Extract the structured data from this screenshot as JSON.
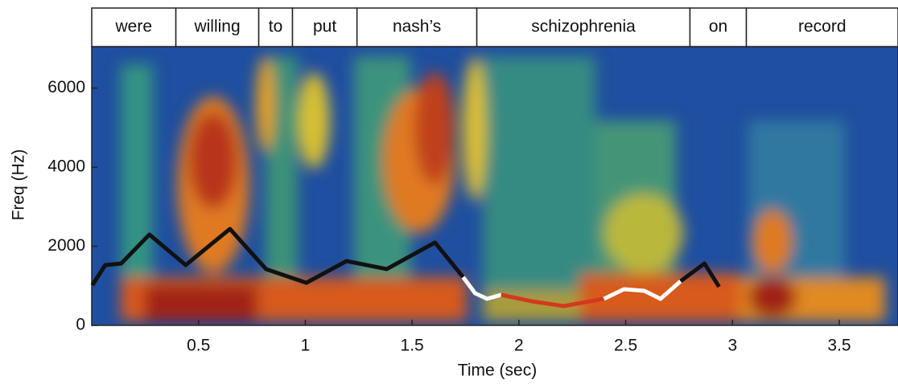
{
  "chart_data": {
    "type": "spectrogram",
    "xlabel": "Time (sec)",
    "ylabel": "Freq (Hz)",
    "xlim": [
      0,
      3.775
    ],
    "ylim": [
      0,
      7050
    ],
    "xticks": [
      0.5,
      1,
      1.5,
      2,
      2.5,
      3,
      3.5
    ],
    "yticks": [
      0,
      2000,
      4000,
      6000
    ],
    "words": [
      {
        "text": "were",
        "start": 0,
        "end": 0.394
      },
      {
        "text": "willing",
        "start": 0.394,
        "end": 0.782
      },
      {
        "text": "to",
        "start": 0.782,
        "end": 0.94
      },
      {
        "text": "put",
        "start": 0.94,
        "end": 1.242
      },
      {
        "text": "nash’s",
        "start": 1.242,
        "end": 1.803
      },
      {
        "text": "schizophrenia",
        "start": 1.803,
        "end": 2.801
      },
      {
        "text": "on",
        "start": 2.801,
        "end": 3.065
      },
      {
        "text": "record",
        "start": 3.065,
        "end": 3.775
      }
    ],
    "series": [
      {
        "color": "#111111",
        "x": [
          0.003,
          0.063,
          0.138,
          0.27,
          0.44,
          0.647,
          0.816,
          1.005,
          1.193,
          1.381,
          1.607,
          1.739
        ],
        "values": [
          1016,
          1524,
          1565,
          2297,
          1524,
          2439,
          1423,
          1077,
          1626,
          1423,
          2094,
          1220
        ]
      },
      {
        "color": "#ffffff",
        "x": [
          1.739,
          1.795,
          1.851,
          1.917
        ],
        "values": [
          1220,
          813,
          671,
          772
        ]
      },
      {
        "color": "#d23a1e",
        "x": [
          1.917,
          2.059,
          2.21,
          2.398
        ],
        "values": [
          772,
          610,
          488,
          671
        ]
      },
      {
        "color": "#ffffff",
        "x": [
          2.398,
          2.492,
          2.587,
          2.663,
          2.757
        ],
        "values": [
          671,
          915,
          874,
          671,
          1118
        ]
      },
      {
        "color": "#111111",
        "x": [
          2.757,
          2.869,
          2.937
        ],
        "values": [
          1118,
          1565,
          976
        ]
      }
    ]
  }
}
